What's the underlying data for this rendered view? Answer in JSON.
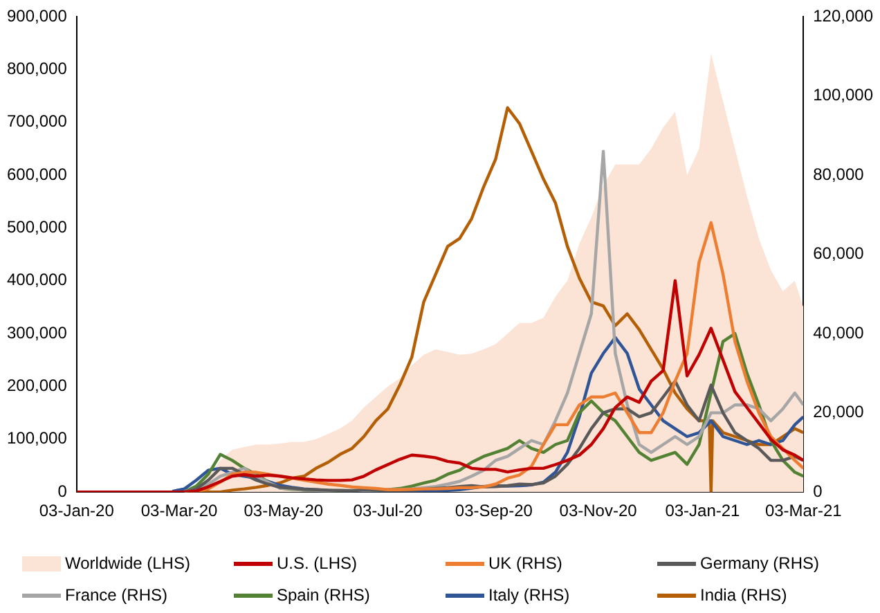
{
  "chart_data": {
    "type": "line",
    "legend": "bottom",
    "marker": "none",
    "line_style": "solid",
    "x": [
      "2020-01-03",
      "2020-01-10",
      "2020-01-17",
      "2020-01-24",
      "2020-01-31",
      "2020-02-07",
      "2020-02-14",
      "2020-02-21",
      "2020-02-28",
      "2020-03-06",
      "2020-03-13",
      "2020-03-20",
      "2020-03-27",
      "2020-04-03",
      "2020-04-10",
      "2020-04-17",
      "2020-04-24",
      "2020-05-01",
      "2020-05-08",
      "2020-05-15",
      "2020-05-22",
      "2020-05-29",
      "2020-06-05",
      "2020-06-12",
      "2020-06-19",
      "2020-06-26",
      "2020-07-03",
      "2020-07-10",
      "2020-07-17",
      "2020-07-24",
      "2020-07-31",
      "2020-08-07",
      "2020-08-14",
      "2020-08-21",
      "2020-08-28",
      "2020-09-04",
      "2020-09-11",
      "2020-09-18",
      "2020-09-25",
      "2020-10-02",
      "2020-10-09",
      "2020-10-16",
      "2020-10-23",
      "2020-10-30",
      "2020-11-06",
      "2020-11-13",
      "2020-11-20",
      "2020-11-27",
      "2020-12-04",
      "2020-12-11",
      "2020-12-18",
      "2020-12-25",
      "2021-01-01",
      "2021-01-08",
      "2021-01-15",
      "2021-01-22",
      "2021-01-29",
      "2021-02-05",
      "2021-02-12",
      "2021-02-19",
      "2021-02-26",
      "2021-03-03"
    ],
    "xlim": [
      "2020-01-03",
      "2021-03-03"
    ],
    "xticks": [
      {
        "value": "2020-01-03",
        "label": "03-Jan-20"
      },
      {
        "value": "2020-03-03",
        "label": "03-Mar-20"
      },
      {
        "value": "2020-05-03",
        "label": "03-May-20"
      },
      {
        "value": "2020-07-03",
        "label": "03-Jul-20"
      },
      {
        "value": "2020-09-03",
        "label": "03-Sep-20"
      },
      {
        "value": "2020-11-03",
        "label": "03-Nov-20"
      },
      {
        "value": "2021-01-03",
        "label": "03-Jan-21"
      },
      {
        "value": "2021-03-03",
        "label": "03-Mar-21"
      }
    ],
    "ylim": [
      0,
      900000
    ],
    "yticks": [
      0,
      {
        "value": 100000,
        "label": "100,000"
      },
      {
        "value": 200000,
        "label": "200,000"
      },
      {
        "value": 300000,
        "label": "300,000"
      },
      {
        "value": 400000,
        "label": "400,000"
      },
      {
        "value": 500000,
        "label": "500,000"
      },
      {
        "value": 600000,
        "label": "600,000"
      },
      {
        "value": 700000,
        "label": "700,000"
      },
      {
        "value": 800000,
        "label": "800,000"
      },
      {
        "value": 900000,
        "label": "900,000"
      }
    ],
    "y2lim": [
      0,
      120000
    ],
    "y2ticks": [
      0,
      {
        "value": 20000,
        "label": "20,000"
      },
      {
        "value": 40000,
        "label": "40,000"
      },
      {
        "value": 60000,
        "label": "60,000"
      },
      {
        "value": 80000,
        "label": "80,000"
      },
      {
        "value": 100000,
        "label": "100,000"
      },
      {
        "value": 120000,
        "label": "120,000"
      }
    ],
    "series": [
      {
        "name": "Worldwide (LHS)",
        "type": "area",
        "color": "#fbe3d6",
        "values": [
          0,
          0,
          0,
          0,
          0,
          0,
          0,
          0,
          0,
          0,
          10000,
          30000,
          60000,
          80000,
          85000,
          90000,
          90000,
          92000,
          95000,
          95000,
          100000,
          110000,
          120000,
          135000,
          160000,
          180000,
          200000,
          215000,
          240000,
          260000,
          270000,
          265000,
          260000,
          262000,
          270000,
          280000,
          300000,
          320000,
          320000,
          330000,
          370000,
          400000,
          470000,
          520000,
          580000,
          620000,
          620000,
          620000,
          650000,
          690000,
          720000,
          600000,
          650000,
          830000,
          740000,
          650000,
          560000,
          480000,
          420000,
          380000,
          400000,
          350000
        ]
      },
      {
        "name": "U.S. (LHS)",
        "color": "#c00000",
        "values": [
          0,
          0,
          0,
          0,
          0,
          0,
          0,
          0,
          0,
          0,
          2000,
          10000,
          20000,
          30000,
          33000,
          30000,
          32000,
          30000,
          27000,
          25000,
          23000,
          22000,
          22000,
          23000,
          30000,
          42000,
          52000,
          62000,
          70000,
          68000,
          65000,
          58000,
          55000,
          45000,
          43000,
          43000,
          38000,
          42000,
          45000,
          45000,
          52000,
          60000,
          70000,
          90000,
          120000,
          160000,
          180000,
          170000,
          210000,
          230000,
          400000,
          220000,
          260000,
          310000,
          250000,
          190000,
          160000,
          130000,
          100000,
          80000,
          70000,
          60000
        ]
      },
      {
        "name": "UK (RHS)",
        "axis": "y2",
        "color": "#ed7d31",
        "values": [
          null,
          null,
          null,
          null,
          null,
          null,
          null,
          null,
          null,
          0,
          200,
          800,
          2500,
          4500,
          5000,
          5000,
          4500,
          4000,
          3500,
          3000,
          2500,
          2000,
          1700,
          1300,
          1100,
          900,
          600,
          600,
          700,
          800,
          800,
          900,
          1100,
          1100,
          1300,
          2000,
          3500,
          4300,
          6500,
          12000,
          17000,
          17000,
          22000,
          24000,
          24000,
          25000,
          20000,
          15000,
          15000,
          20000,
          28000,
          35000,
          58000,
          68000,
          55000,
          38000,
          28000,
          20000,
          14000,
          11000,
          8000,
          6000
        ]
      },
      {
        "name": "Germany (RHS)",
        "axis": "y2",
        "color": "#595959",
        "values": [
          null,
          null,
          null,
          null,
          null,
          null,
          null,
          null,
          null,
          100,
          800,
          3000,
          6000,
          6000,
          4500,
          3000,
          2000,
          1200,
          1000,
          700,
          600,
          500,
          400,
          300,
          600,
          500,
          400,
          400,
          500,
          700,
          900,
          1100,
          1400,
          1600,
          1300,
          1400,
          1600,
          2000,
          1900,
          2300,
          4000,
          7000,
          11000,
          16000,
          20000,
          21000,
          21000,
          19000,
          20000,
          24000,
          28000,
          22000,
          18000,
          27000,
          20000,
          15000,
          13000,
          11000,
          8000,
          8000,
          9000,
          8000
        ]
      },
      {
        "name": "France (RHS)",
        "axis": "y2",
        "color": "#a6a6a6",
        "values": [
          null,
          null,
          null,
          null,
          null,
          null,
          null,
          null,
          null,
          200,
          800,
          2000,
          4000,
          5000,
          6000,
          4000,
          2500,
          1000,
          800,
          500,
          400,
          300,
          500,
          400,
          400,
          500,
          600,
          600,
          800,
          1100,
          1400,
          2000,
          2700,
          4000,
          5500,
          8000,
          9000,
          11000,
          13000,
          12000,
          18000,
          25000,
          35000,
          45000,
          86000,
          35000,
          22000,
          12000,
          10000,
          12000,
          14000,
          12000,
          14000,
          20000,
          20000,
          22000,
          22000,
          21000,
          18000,
          21000,
          25000,
          22000
        ]
      },
      {
        "name": "Spain (RHS)",
        "axis": "y2",
        "color": "#548235",
        "values": [
          null,
          null,
          null,
          null,
          null,
          null,
          null,
          null,
          null,
          100,
          1500,
          4500,
          9500,
          8000,
          6000,
          4500,
          2500,
          1000,
          700,
          500,
          400,
          300,
          300,
          400,
          400,
          500,
          600,
          900,
          1500,
          2300,
          3000,
          4500,
          5500,
          7500,
          9000,
          10000,
          11000,
          13000,
          11000,
          10000,
          12000,
          13000,
          20000,
          23000,
          20000,
          18000,
          14000,
          10000,
          8000,
          9000,
          10000,
          7000,
          12000,
          25000,
          38000,
          40000,
          30000,
          22000,
          13000,
          8000,
          5000,
          4000
        ]
      },
      {
        "name": "Italy (RHS)",
        "axis": "y2",
        "color": "#2f5597",
        "values": [
          null,
          null,
          null,
          null,
          null,
          null,
          null,
          null,
          200,
          800,
          3000,
          5500,
          6000,
          4500,
          4000,
          3500,
          2700,
          1700,
          1200,
          800,
          600,
          400,
          300,
          300,
          300,
          200,
          200,
          200,
          200,
          300,
          300,
          400,
          600,
          1000,
          1400,
          1600,
          1500,
          1600,
          1800,
          2500,
          5000,
          10000,
          19000,
          30000,
          35000,
          39000,
          35000,
          26000,
          22000,
          18000,
          16000,
          14000,
          15000,
          18000,
          14000,
          13000,
          12000,
          13000,
          12000,
          13000,
          17000,
          19000
        ]
      },
      {
        "name": "India (RHS)",
        "axis": "y2",
        "color": "#b45f06",
        "x": [
          "2020-03-06",
          "2020-03-13",
          "2020-03-20",
          "2020-03-27",
          "2020-04-03",
          "2020-04-10",
          "2020-04-17",
          "2020-04-24",
          "2020-05-01",
          "2020-05-08",
          "2020-05-15",
          "2020-05-22",
          "2020-05-29",
          "2020-06-05",
          "2020-06-12",
          "2020-06-19",
          "2020-06-26",
          "2020-07-03",
          "2020-07-10",
          "2020-07-17",
          "2020-07-24",
          "2020-07-31",
          "2020-08-07",
          "2020-08-14",
          "2020-08-21",
          "2020-08-28",
          "2020-09-04",
          "2020-09-11",
          "2020-09-18",
          "2020-09-25",
          "2020-10-02",
          "2020-10-09",
          "2020-10-16",
          "2020-10-23",
          "2020-10-30",
          "2020-11-06",
          "2020-11-13",
          "2020-11-20",
          "2020-11-27",
          "2020-12-04",
          "2020-12-11",
          "2020-12-18",
          "2020-12-25",
          "2021-01-01",
          "2021-01-07",
          "2021-01-08",
          "2021-01-09",
          "2021-01-15",
          "2021-01-22",
          "2021-01-29",
          "2021-02-05",
          "2021-02-12",
          "2021-02-19",
          "2021-02-26",
          "2021-03-03"
        ],
        "values": [
          0,
          0,
          0,
          0,
          500,
          800,
          1200,
          1700,
          2300,
          3500,
          4000,
          6000,
          7500,
          9500,
          11000,
          14000,
          18000,
          21000,
          27000,
          34000,
          48000,
          55000,
          62000,
          64000,
          69000,
          77000,
          84000,
          97000,
          93000,
          86000,
          79000,
          73000,
          62000,
          54000,
          48000,
          47000,
          42000,
          45000,
          41000,
          36000,
          31000,
          25000,
          21000,
          18000,
          18000,
          0,
          18000,
          15000,
          14000,
          13000,
          12000,
          12000,
          14000,
          16000,
          15000
        ]
      }
    ]
  }
}
